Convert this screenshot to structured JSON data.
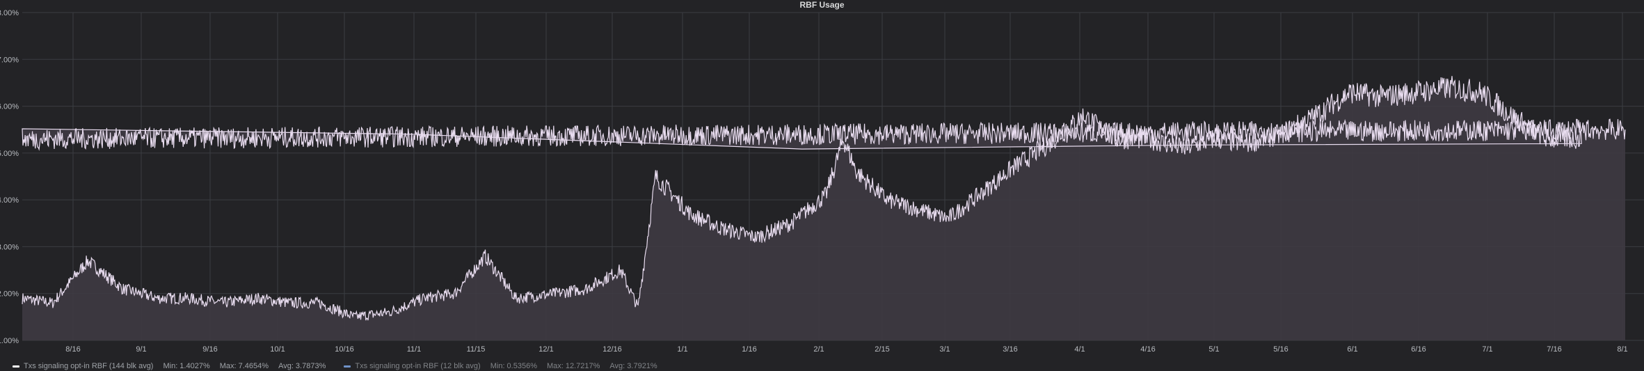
{
  "chart_data": {
    "type": "line",
    "title": "RBF Usage",
    "y_ticks": [
      "1.00%",
      "2.00%",
      "3.00%",
      "4.00%",
      "5.00%",
      "6.00%",
      "7.00%",
      "8.00%"
    ],
    "ylim": [
      1,
      8
    ],
    "y_unit": "%",
    "x_ticks": [
      "8/16",
      "9/1",
      "9/16",
      "10/1",
      "10/16",
      "11/1",
      "11/15",
      "12/1",
      "12/16",
      "1/1",
      "1/16",
      "2/1",
      "2/15",
      "3/1",
      "3/16",
      "4/1",
      "4/16",
      "5/1",
      "5/16",
      "6/1",
      "6/16",
      "7/1",
      "7/16",
      "8/1"
    ],
    "x": [
      "8/1",
      "8/8",
      "8/16",
      "8/24",
      "9/1",
      "9/8",
      "9/16",
      "9/24",
      "10/1",
      "10/8",
      "10/16",
      "10/24",
      "11/1",
      "11/8",
      "11/15",
      "11/22",
      "12/1",
      "12/8",
      "12/16",
      "12/20",
      "12/24",
      "1/1",
      "1/8",
      "1/16",
      "1/24",
      "2/1",
      "2/5",
      "2/8",
      "2/15",
      "2/22",
      "3/1",
      "3/8",
      "3/16",
      "3/24",
      "4/1",
      "4/8",
      "4/16",
      "4/24",
      "5/1",
      "5/8",
      "5/16",
      "5/24",
      "6/1",
      "6/8",
      "6/16",
      "6/24",
      "7/1",
      "7/8",
      "7/16",
      "7/24",
      "8/1",
      "8/3"
    ],
    "grid": true,
    "legend_position": "bottom-left",
    "series": [
      {
        "name": "Txs signaling opt-in RBF (144 blk avg)",
        "color": "#ffffff",
        "fill": true,
        "values": [
          1.9,
          1.8,
          2.7,
          2.1,
          1.9,
          1.9,
          1.8,
          1.9,
          1.8,
          1.8,
          1.5,
          1.6,
          1.9,
          2.0,
          2.8,
          1.9,
          2.0,
          2.1,
          2.5,
          1.7,
          4.5,
          3.7,
          3.4,
          3.2,
          3.5,
          4.1,
          5.3,
          4.6,
          4.0,
          3.8,
          3.6,
          4.1,
          4.7,
          5.2,
          5.8,
          5.3,
          5.3,
          5.1,
          5.3,
          5.2,
          5.4,
          5.8,
          6.3,
          6.2,
          6.3,
          6.4,
          6.3,
          5.8,
          5.3,
          5.3,
          5.3,
          5.5
        ],
        "min": "Min: 1.4027%",
        "max": "Max: 7.4654%",
        "avg": "Avg: 3.7873%"
      },
      {
        "name": "Txs signaling opt-in RBF (12 blk avg)",
        "color": "#8ab8ff",
        "fill": false,
        "min": "Min: 0.5356%",
        "max": "Max: 12.7217%",
        "avg": "Avg: 3.7921%"
      }
    ]
  },
  "colors": {
    "background": "#232326",
    "grid": "#3b3d42",
    "line": "#e8dcef",
    "fill": "#3e3a42",
    "axis_text": "#b9bcc1"
  }
}
